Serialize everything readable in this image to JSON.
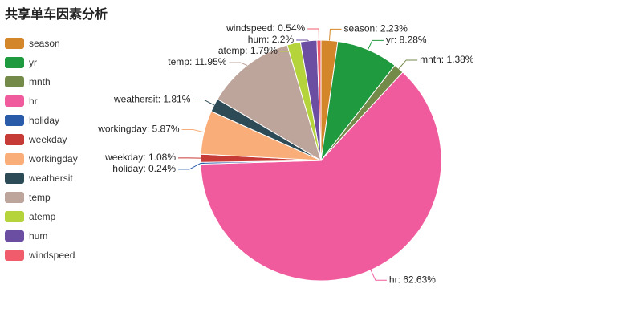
{
  "chart_data": {
    "type": "pie",
    "title": "共享单车因素分析",
    "legend_position": "top-left",
    "slices": [
      {
        "name": "season",
        "value": 2.23,
        "color": "#d4862a"
      },
      {
        "name": "yr",
        "value": 8.28,
        "color": "#1f9a3f"
      },
      {
        "name": "mnth",
        "value": 1.38,
        "color": "#738a48"
      },
      {
        "name": "hr",
        "value": 62.63,
        "color": "#f05b9e"
      },
      {
        "name": "holiday",
        "value": 0.24,
        "color": "#2a5ba8"
      },
      {
        "name": "weekday",
        "value": 1.08,
        "color": "#c73b36"
      },
      {
        "name": "workingday",
        "value": 5.87,
        "color": "#f9ae7a"
      },
      {
        "name": "weathersit",
        "value": 1.81,
        "color": "#2d4a57"
      },
      {
        "name": "temp",
        "value": 11.95,
        "color": "#bea59c"
      },
      {
        "name": "atemp",
        "value": 1.79,
        "color": "#b5d33a"
      },
      {
        "name": "hum",
        "value": 2.2,
        "color": "#6b4ea2"
      },
      {
        "name": "windspeed",
        "value": 0.54,
        "color": "#f05c6c"
      }
    ],
    "labels": [
      "season: 2.23%",
      "yr: 8.28%",
      "mnth: 1.38%",
      "hr: 62.63%",
      "holiday: 0.24%",
      "weekday: 1.08%",
      "workingday: 5.87%",
      "weathersit: 1.81%",
      "temp: 11.95%",
      "atemp: 1.79%",
      "hum: 2.2%",
      "windspeed: 0.54%"
    ]
  }
}
